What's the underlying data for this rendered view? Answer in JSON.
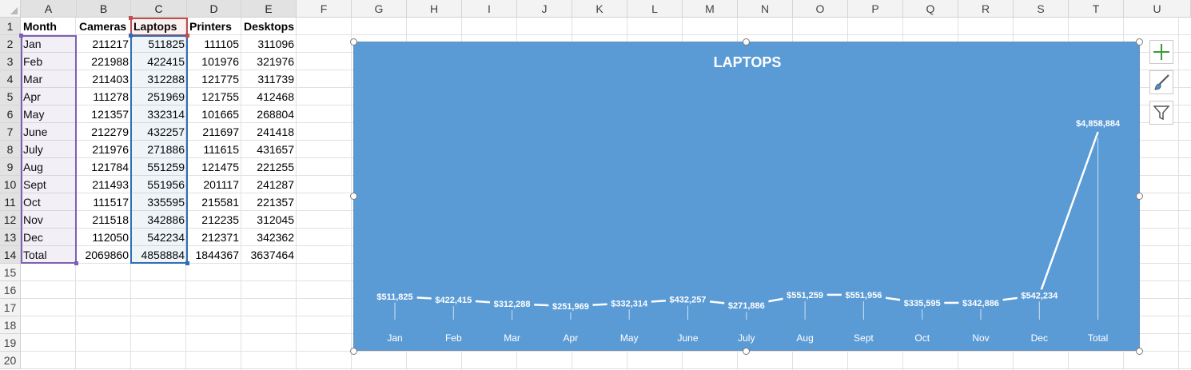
{
  "columns": [
    "A",
    "B",
    "C",
    "D",
    "E",
    "F",
    "G",
    "H",
    "I",
    "J",
    "K",
    "L",
    "M",
    "N",
    "O",
    "P",
    "Q",
    "R",
    "S",
    "T",
    "U"
  ],
  "rows": [
    "1",
    "2",
    "3",
    "4",
    "5",
    "6",
    "7",
    "8",
    "9",
    "10",
    "11",
    "12",
    "13",
    "14",
    "15",
    "16",
    "17",
    "18",
    "19",
    "20"
  ],
  "headers": [
    "Month",
    "Cameras",
    "Laptops",
    "Printers",
    "Desktops"
  ],
  "table": [
    [
      "Jan",
      "211217",
      "511825",
      "111105",
      "311096"
    ],
    [
      "Feb",
      "221988",
      "422415",
      "101976",
      "321976"
    ],
    [
      "Mar",
      "211403",
      "312288",
      "121775",
      "311739"
    ],
    [
      "Apr",
      "111278",
      "251969",
      "121755",
      "412468"
    ],
    [
      "May",
      "121357",
      "332314",
      "101665",
      "268804"
    ],
    [
      "June",
      "212279",
      "432257",
      "211697",
      "241418"
    ],
    [
      "July",
      "211976",
      "271886",
      "111615",
      "431657"
    ],
    [
      "Aug",
      "121784",
      "551259",
      "121475",
      "221255"
    ],
    [
      "Sept",
      "211493",
      "551956",
      "201117",
      "241287"
    ],
    [
      "Oct",
      "111517",
      "335595",
      "215581",
      "221357"
    ],
    [
      "Nov",
      "211518",
      "342886",
      "212235",
      "312045"
    ],
    [
      "Dec",
      "112050",
      "542234",
      "212371",
      "342362"
    ],
    [
      "Total",
      "2069860",
      "4858884",
      "1844367",
      "3637464"
    ]
  ],
  "chart_data": {
    "type": "line",
    "title": "LAPTOPS",
    "categories": [
      "Jan",
      "Feb",
      "Mar",
      "Apr",
      "May",
      "June",
      "July",
      "Aug",
      "Sept",
      "Oct",
      "Nov",
      "Dec",
      "Total"
    ],
    "values": [
      511825,
      422415,
      312288,
      251969,
      332314,
      432257,
      271886,
      551259,
      551956,
      335595,
      342886,
      542234,
      4858884
    ],
    "data_labels": [
      "$511,825",
      "$422,415",
      "$312,288",
      "$251,969",
      "$332,314",
      "$432,257",
      "$271,886",
      "$551,259",
      "$551,956",
      "$335,595",
      "$342,886",
      "$542,234",
      "$4,858,884"
    ],
    "background": "#5b9bd5",
    "line_color": "#ffffff",
    "gridlines": false,
    "legend": "none"
  },
  "side_buttons": [
    "chart-elements-icon",
    "chart-styles-icon",
    "chart-filters-icon"
  ],
  "colors": {
    "selection_purple": "#7f5fb1",
    "selection_red": "#c0504d",
    "selection_blue": "#2f6db5"
  }
}
